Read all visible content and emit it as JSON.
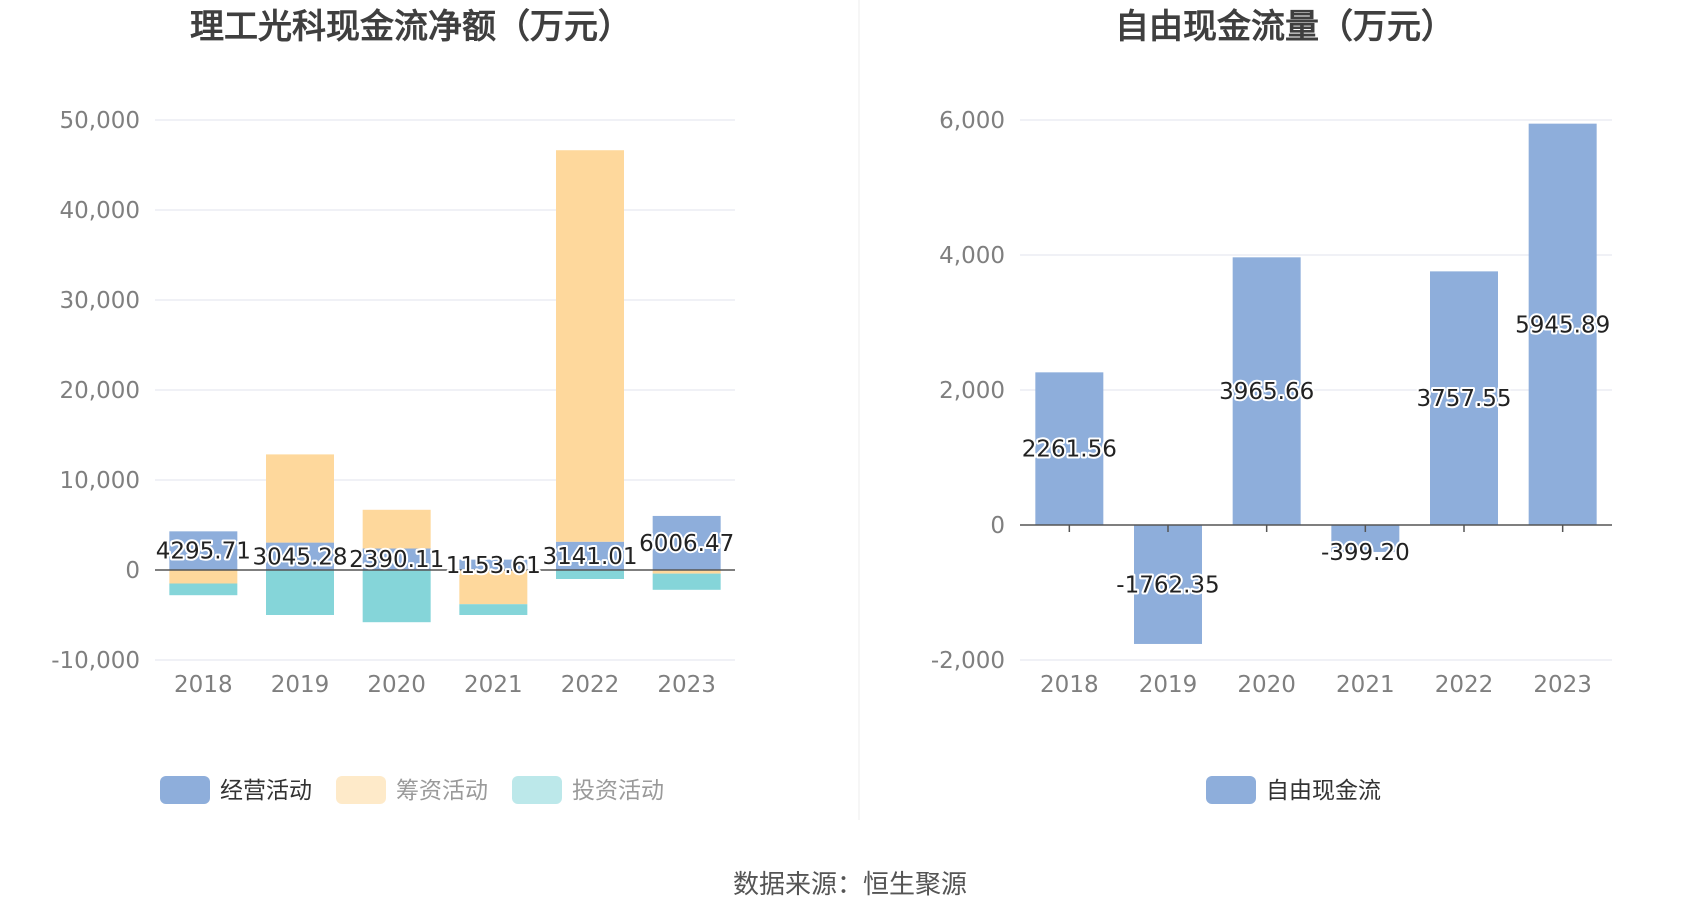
{
  "chart_data": [
    {
      "type": "bar",
      "stacked": true,
      "title": "理工光科现金流净额（万元）",
      "categories": [
        "2018",
        "2019",
        "2020",
        "2021",
        "2022",
        "2023"
      ],
      "ylim": [
        -10000,
        50000
      ],
      "yticks": [
        -10000,
        0,
        10000,
        20000,
        30000,
        40000,
        50000
      ],
      "ytick_labels": [
        "-10,000",
        "0",
        "10,000",
        "20,000",
        "30,000",
        "40,000",
        "50,000"
      ],
      "grid": true,
      "legend_position": "bottom",
      "series": [
        {
          "name": "经营活动",
          "color": "#8eaedb",
          "values": [
            4295.71,
            3045.28,
            2390.11,
            1153.61,
            3141.01,
            6006.47
          ],
          "labels": [
            "4295.71",
            "3045.28",
            "2390.11",
            "1153.61",
            "3141.01",
            "6006.47"
          ]
        },
        {
          "name": "筹资活动",
          "color": "#fed89c",
          "values": [
            -1500,
            9800,
            4300,
            -3800,
            43500,
            -400
          ],
          "labels": []
        },
        {
          "name": "投资活动",
          "color": "#85d5d9",
          "values": [
            -1300,
            -5000,
            -5800,
            -1200,
            -1000,
            -1800
          ],
          "labels": []
        }
      ]
    },
    {
      "type": "bar",
      "title": "自由现金流量（万元）",
      "categories": [
        "2018",
        "2019",
        "2020",
        "2021",
        "2022",
        "2023"
      ],
      "ylim": [
        -2000,
        6000
      ],
      "yticks": [
        -2000,
        0,
        2000,
        4000,
        6000
      ],
      "ytick_labels": [
        "-2,000",
        "0",
        "2,000",
        "4,000",
        "6,000"
      ],
      "grid": true,
      "legend_position": "bottom",
      "series": [
        {
          "name": "自由现金流",
          "color": "#8eaedb",
          "values": [
            2261.56,
            -1762.35,
            3965.66,
            -399.2,
            3757.55,
            5945.89
          ],
          "labels": [
            "2261.56",
            "-1762.35",
            "3965.66",
            "-399.20",
            "3757.55",
            "5945.89"
          ]
        }
      ]
    }
  ],
  "footer": {
    "source": "数据来源：恒生聚源"
  }
}
